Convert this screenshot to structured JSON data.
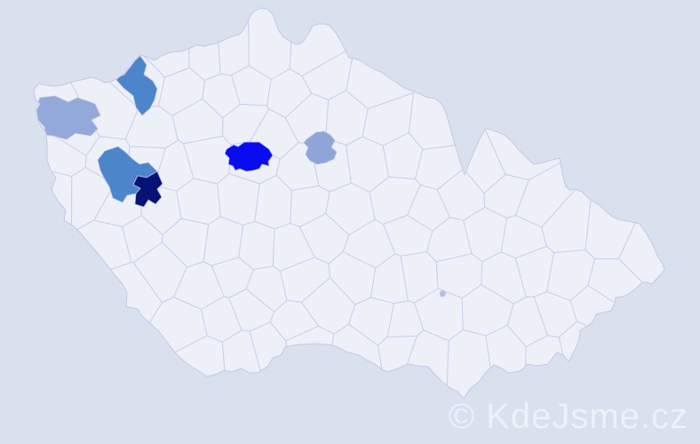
{
  "watermark": {
    "text": "© KdeJsme.cz",
    "color": "#f1f5fa"
  },
  "map": {
    "country": "Czech Republic district (okres) choropleth map",
    "colors": {
      "background": "#d9e0ee",
      "land": "#eef0f8",
      "district_border": "#c9cfe9",
      "outline": "#c2c9e7"
    },
    "highlighted_districts": [
      {
        "id": "northwest",
        "color": "#4d85cb"
      },
      {
        "id": "west",
        "color": "#93a9da"
      },
      {
        "id": "plzen-north",
        "color": "#4d85cb"
      },
      {
        "id": "plzen-city",
        "color": "#071275"
      },
      {
        "id": "prague",
        "color": "#0b0bf2"
      },
      {
        "id": "east-of-prague",
        "color": "#8fa5d8"
      },
      {
        "id": "small-marker",
        "color": "#b4bce8"
      }
    ]
  }
}
